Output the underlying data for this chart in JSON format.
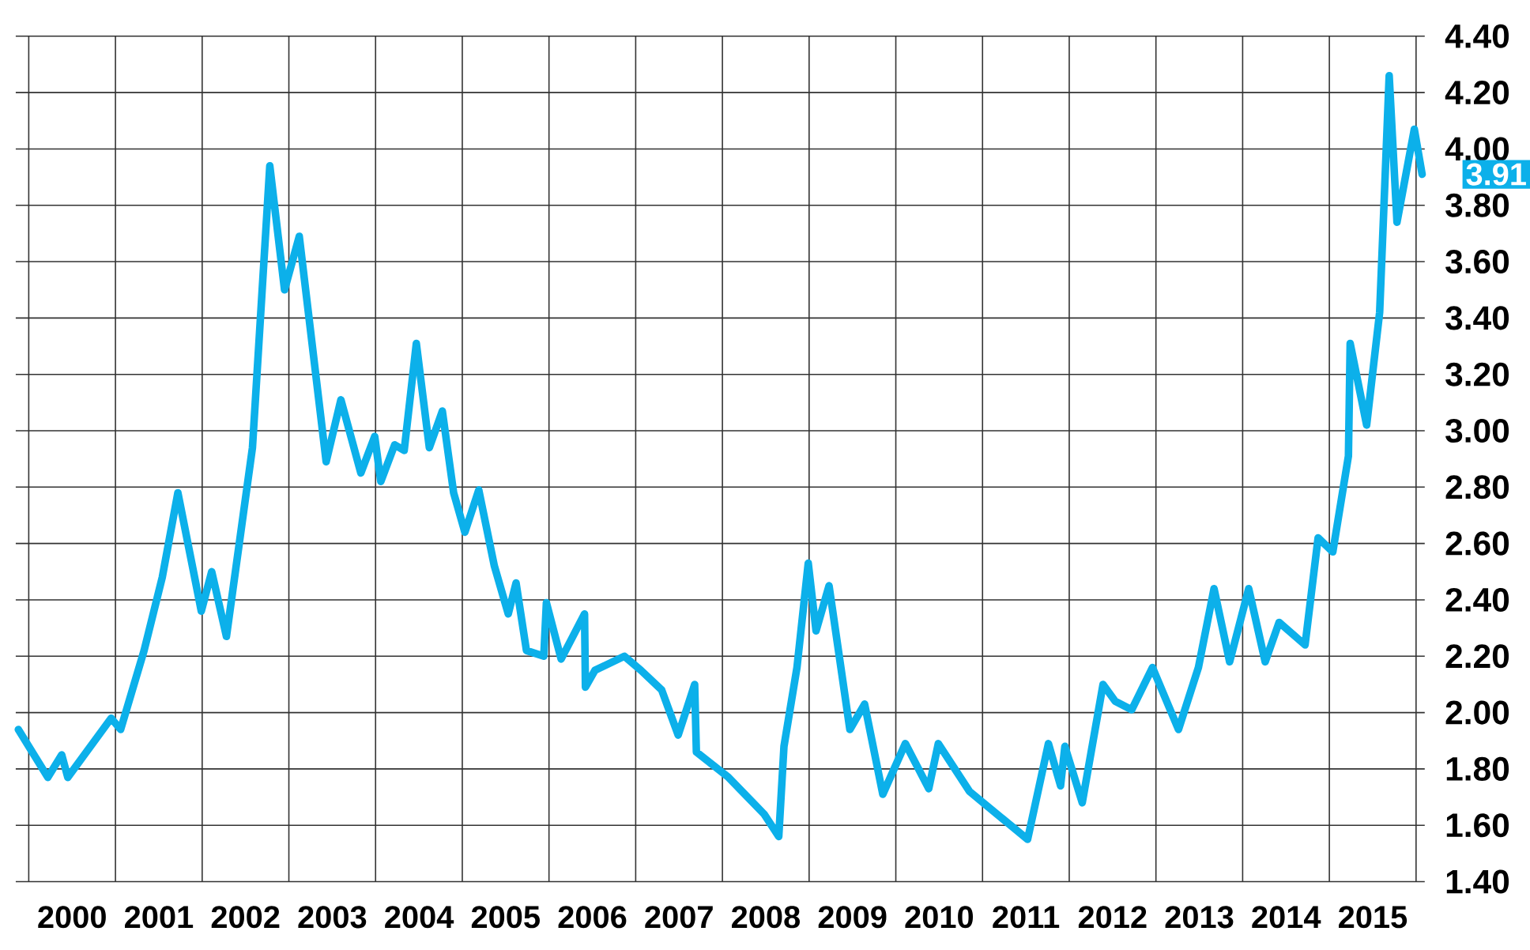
{
  "chart_data": {
    "type": "line",
    "x": [
      1999.88,
      2000.22,
      2000.38,
      2000.45,
      2000.95,
      2001.06,
      2001.33,
      2001.54,
      2001.72,
      2001.99,
      2002.11,
      2002.28,
      2002.58,
      2002.78,
      2002.95,
      2003.12,
      2003.43,
      2003.6,
      2003.83,
      2003.99,
      2004.06,
      2004.22,
      2004.33,
      2004.47,
      2004.62,
      2004.77,
      2004.9,
      2005.03,
      2005.19,
      2005.37,
      2005.53,
      2005.62,
      2005.74,
      2005.94,
      2005.97,
      2006.14,
      2006.41,
      2006.42,
      2006.53,
      2006.87,
      2007.06,
      2007.3,
      2007.49,
      2007.68,
      2007.7,
      2008.07,
      2008.48,
      2008.65,
      2008.71,
      2008.86,
      2008.99,
      2009.08,
      2009.23,
      2009.47,
      2009.64,
      2009.85,
      2010.11,
      2010.38,
      2010.49,
      2010.85,
      2011.52,
      2011.76,
      2011.9,
      2011.95,
      2012.15,
      2012.39,
      2012.53,
      2012.72,
      2012.96,
      2013.26,
      2013.49,
      2013.67,
      2013.85,
      2014.07,
      2014.26,
      2014.42,
      2014.72,
      2014.87,
      2015.04,
      2015.22,
      2015.24,
      2015.43,
      2015.58,
      2015.69,
      2015.78,
      2015.98,
      2016.07
    ],
    "series": [
      {
        "color": "#0cb0ea",
        "values": [
          1.94,
          1.77,
          1.85,
          1.77,
          1.98,
          1.94,
          2.22,
          2.48,
          2.78,
          2.36,
          2.5,
          2.27,
          2.94,
          3.94,
          3.5,
          3.69,
          2.89,
          3.11,
          2.85,
          2.98,
          2.82,
          2.95,
          2.93,
          3.31,
          2.94,
          3.07,
          2.78,
          2.64,
          2.79,
          2.52,
          2.35,
          2.46,
          2.22,
          2.2,
          2.39,
          2.19,
          2.35,
          2.09,
          2.15,
          2.2,
          2.15,
          2.08,
          1.92,
          2.1,
          1.86,
          1.77,
          1.64,
          1.56,
          1.88,
          2.16,
          2.53,
          2.29,
          2.45,
          1.94,
          2.03,
          1.71,
          1.89,
          1.73,
          1.89,
          1.72,
          1.55,
          1.89,
          1.74,
          1.88,
          1.68,
          2.1,
          2.04,
          2.01,
          2.16,
          1.94,
          2.16,
          2.44,
          2.18,
          2.44,
          2.18,
          2.32,
          2.24,
          2.62,
          2.57,
          2.91,
          3.31,
          3.02,
          3.42,
          4.26,
          3.74,
          4.07,
          3.91
        ]
      }
    ],
    "xlim": [
      1999.85,
      2016.1
    ],
    "ylim": [
      1.4,
      4.4
    ],
    "xticks": [
      {
        "value": 2000,
        "label": null
      },
      {
        "value": 2001,
        "label": null
      },
      {
        "value": 2002,
        "label": null
      },
      {
        "value": 2003,
        "label": null
      },
      {
        "value": 2004,
        "label": null
      },
      {
        "value": 2005,
        "label": null
      },
      {
        "value": 2006,
        "label": null
      },
      {
        "value": 2007,
        "label": null
      },
      {
        "value": 2008,
        "label": null
      },
      {
        "value": 2009,
        "label": null
      },
      {
        "value": 2010,
        "label": null
      },
      {
        "value": 2011,
        "label": null
      },
      {
        "value": 2012,
        "label": null
      },
      {
        "value": 2013,
        "label": null
      },
      {
        "value": 2014,
        "label": null
      },
      {
        "value": 2015,
        "label": null
      },
      {
        "value": 2016,
        "label": null
      },
      {
        "value": 2000.5,
        "label": "2000"
      },
      {
        "value": 2001.5,
        "label": "2001"
      },
      {
        "value": 2002.5,
        "label": "2002"
      },
      {
        "value": 2003.5,
        "label": "2003"
      },
      {
        "value": 2004.5,
        "label": "2004"
      },
      {
        "value": 2005.5,
        "label": "2005"
      },
      {
        "value": 2006.5,
        "label": "2006"
      },
      {
        "value": 2007.5,
        "label": "2007"
      },
      {
        "value": 2008.5,
        "label": "2008"
      },
      {
        "value": 2009.5,
        "label": "2009"
      },
      {
        "value": 2010.5,
        "label": "2010"
      },
      {
        "value": 2011.5,
        "label": "2011"
      },
      {
        "value": 2012.5,
        "label": "2012"
      },
      {
        "value": 2013.5,
        "label": "2013"
      },
      {
        "value": 2014.5,
        "label": "2014"
      },
      {
        "value": 2015.5,
        "label": "2015"
      }
    ],
    "yticks": [
      {
        "value": 1.4,
        "label": "1.40"
      },
      {
        "value": 1.6,
        "label": "1.60"
      },
      {
        "value": 1.8,
        "label": "1.80"
      },
      {
        "value": 2.0,
        "label": "2.00"
      },
      {
        "value": 2.2,
        "label": "2.20"
      },
      {
        "value": 2.4,
        "label": "2.40"
      },
      {
        "value": 2.6,
        "label": "2.60"
      },
      {
        "value": 2.8,
        "label": "2.80"
      },
      {
        "value": 3.0,
        "label": "3.00"
      },
      {
        "value": 3.2,
        "label": "3.20"
      },
      {
        "value": 3.4,
        "label": "3.40"
      },
      {
        "value": 3.6,
        "label": "3.60"
      },
      {
        "value": 3.8,
        "label": "3.80"
      },
      {
        "value": 4.0,
        "label": "4.00"
      },
      {
        "value": 4.2,
        "label": "4.20"
      },
      {
        "value": 4.4,
        "label": "4.40"
      }
    ],
    "grid": true,
    "annotations": [
      {
        "text": "3.91",
        "x": 2016.07,
        "y": 3.91
      }
    ]
  }
}
